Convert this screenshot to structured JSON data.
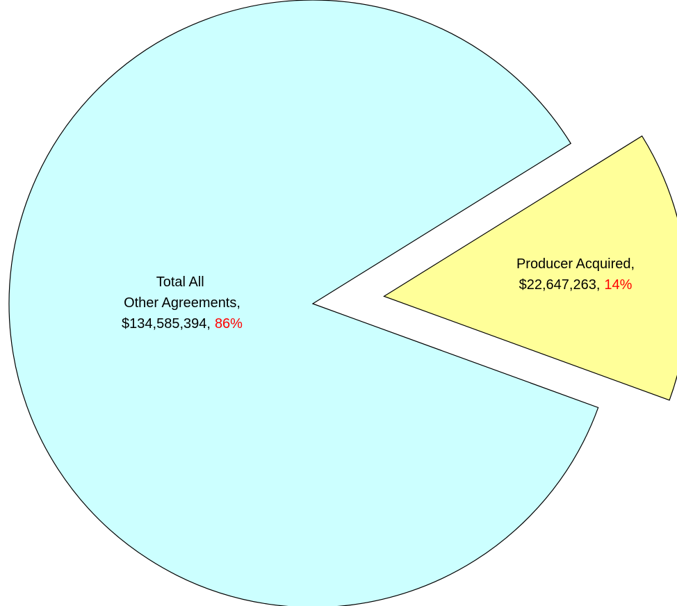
{
  "chart_data": {
    "type": "pie",
    "categories": [
      "Total All Other Agreements,",
      "Producer Acquired,"
    ],
    "values": [
      134585394,
      22647263
    ],
    "value_labels": [
      "$134,585,394,",
      "$22,647,263,"
    ],
    "percents": [
      86,
      14
    ],
    "percent_labels": [
      "86%",
      "14%"
    ],
    "colors": [
      "#ccffff",
      "#ffff99"
    ],
    "percent_color": "#ff0000"
  }
}
